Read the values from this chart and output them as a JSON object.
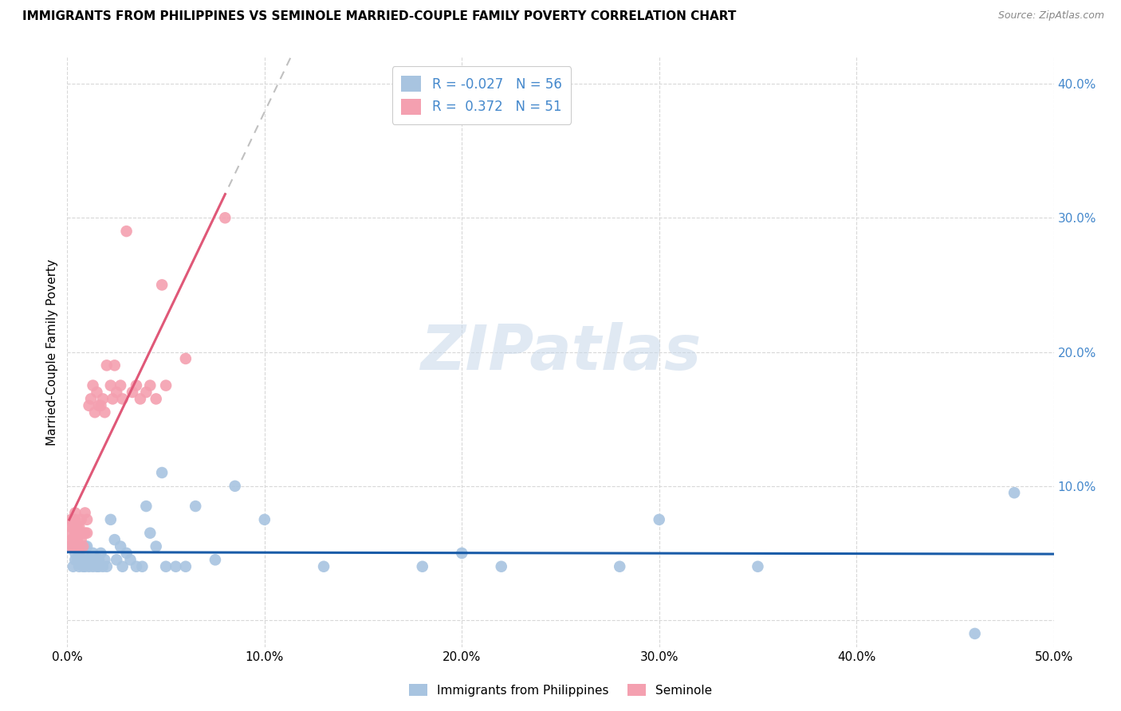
{
  "title": "IMMIGRANTS FROM PHILIPPINES VS SEMINOLE MARRIED-COUPLE FAMILY POVERTY CORRELATION CHART",
  "source": "Source: ZipAtlas.com",
  "ylabel": "Married-Couple Family Poverty",
  "watermark": "ZIPatlas",
  "xlim": [
    0.0,
    0.5
  ],
  "ylim": [
    -0.02,
    0.42
  ],
  "xtick_positions": [
    0.0,
    0.1,
    0.2,
    0.3,
    0.4,
    0.5
  ],
  "ytick_positions": [
    0.0,
    0.1,
    0.2,
    0.3,
    0.4
  ],
  "xtick_labels": [
    "0.0%",
    "10.0%",
    "20.0%",
    "30.0%",
    "40.0%",
    "50.0%"
  ],
  "ytick_labels": [
    "",
    "10.0%",
    "20.0%",
    "30.0%",
    "40.0%"
  ],
  "blue_R": -0.027,
  "blue_N": 56,
  "pink_R": 0.372,
  "pink_N": 51,
  "blue_color": "#a8c4e0",
  "pink_color": "#f4a0b0",
  "blue_line_color": "#1a5ca8",
  "pink_line_color": "#e05878",
  "grid_color": "#d8d8d8",
  "background_color": "#ffffff",
  "legend_label_blue": "Immigrants from Philippines",
  "legend_label_pink": "Seminole",
  "blue_scatter_x": [
    0.002,
    0.003,
    0.004,
    0.004,
    0.005,
    0.005,
    0.006,
    0.006,
    0.007,
    0.008,
    0.008,
    0.009,
    0.009,
    0.01,
    0.01,
    0.011,
    0.012,
    0.013,
    0.013,
    0.014,
    0.015,
    0.016,
    0.016,
    0.017,
    0.018,
    0.019,
    0.02,
    0.022,
    0.024,
    0.025,
    0.027,
    0.028,
    0.03,
    0.032,
    0.035,
    0.038,
    0.04,
    0.042,
    0.045,
    0.048,
    0.05,
    0.055,
    0.06,
    0.065,
    0.075,
    0.085,
    0.1,
    0.13,
    0.18,
    0.2,
    0.22,
    0.28,
    0.3,
    0.35,
    0.46,
    0.48
  ],
  "blue_scatter_y": [
    0.055,
    0.04,
    0.05,
    0.045,
    0.055,
    0.045,
    0.05,
    0.04,
    0.045,
    0.05,
    0.04,
    0.055,
    0.04,
    0.045,
    0.055,
    0.04,
    0.045,
    0.05,
    0.04,
    0.045,
    0.04,
    0.045,
    0.04,
    0.05,
    0.04,
    0.045,
    0.04,
    0.075,
    0.06,
    0.045,
    0.055,
    0.04,
    0.05,
    0.045,
    0.04,
    0.04,
    0.085,
    0.065,
    0.055,
    0.11,
    0.04,
    0.04,
    0.04,
    0.085,
    0.045,
    0.1,
    0.075,
    0.04,
    0.04,
    0.05,
    0.04,
    0.04,
    0.075,
    0.04,
    -0.01,
    0.095
  ],
  "pink_scatter_x": [
    0.001,
    0.001,
    0.002,
    0.002,
    0.002,
    0.003,
    0.003,
    0.003,
    0.004,
    0.004,
    0.004,
    0.005,
    0.005,
    0.005,
    0.006,
    0.006,
    0.007,
    0.007,
    0.008,
    0.008,
    0.009,
    0.009,
    0.01,
    0.01,
    0.011,
    0.012,
    0.013,
    0.014,
    0.015,
    0.016,
    0.017,
    0.018,
    0.019,
    0.02,
    0.022,
    0.023,
    0.024,
    0.025,
    0.027,
    0.028,
    0.03,
    0.033,
    0.035,
    0.037,
    0.04,
    0.042,
    0.045,
    0.048,
    0.05,
    0.06,
    0.08
  ],
  "pink_scatter_y": [
    0.055,
    0.07,
    0.06,
    0.075,
    0.065,
    0.06,
    0.07,
    0.055,
    0.065,
    0.075,
    0.08,
    0.06,
    0.07,
    0.065,
    0.055,
    0.07,
    0.06,
    0.075,
    0.055,
    0.065,
    0.065,
    0.08,
    0.065,
    0.075,
    0.16,
    0.165,
    0.175,
    0.155,
    0.17,
    0.16,
    0.16,
    0.165,
    0.155,
    0.19,
    0.175,
    0.165,
    0.19,
    0.17,
    0.175,
    0.165,
    0.29,
    0.17,
    0.175,
    0.165,
    0.17,
    0.175,
    0.165,
    0.25,
    0.175,
    0.195,
    0.3
  ]
}
